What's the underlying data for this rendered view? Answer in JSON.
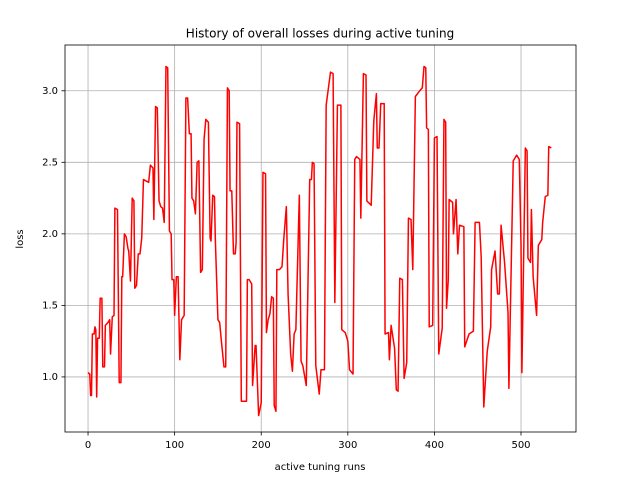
{
  "chart_data": {
    "type": "line",
    "title": "History of overall losses during active tuning",
    "x_label": "active tuning runs",
    "y_label": "loss",
    "color": "#ff0000",
    "grid": true,
    "x": [
      0,
      2,
      3,
      4,
      5,
      7,
      8,
      9,
      10,
      11,
      13,
      14,
      16,
      17,
      19,
      20,
      23,
      25,
      26,
      28,
      30,
      31,
      34,
      36,
      38,
      39,
      40,
      42,
      44,
      46,
      47,
      49,
      51,
      53,
      54,
      56,
      58,
      60,
      62,
      64,
      67,
      70,
      72,
      75,
      76,
      78,
      80,
      82,
      84,
      86,
      88,
      90,
      92,
      94,
      96,
      97,
      99,
      100,
      102,
      104,
      106,
      108,
      111,
      113,
      115,
      117,
      119,
      120,
      122,
      124,
      126,
      128,
      130,
      132,
      134,
      136,
      139,
      141,
      142,
      144,
      146,
      147,
      150,
      152,
      154,
      157,
      159,
      161,
      163,
      164,
      166,
      168,
      170,
      171,
      172,
      175,
      177,
      179,
      183,
      184,
      186,
      189,
      190,
      193,
      194,
      197,
      200,
      202,
      205,
      206,
      208,
      210,
      212,
      214,
      215,
      217,
      218,
      221,
      224,
      226,
      229,
      231,
      234,
      236,
      238,
      240,
      244,
      246,
      248,
      252,
      256,
      258,
      259,
      261,
      263,
      267,
      269,
      273,
      275,
      280,
      283,
      285,
      288,
      292,
      293,
      297,
      300,
      302,
      306,
      308,
      310,
      314,
      315,
      318,
      321,
      322,
      327,
      330,
      333,
      334,
      336,
      338,
      342,
      343,
      347,
      348,
      350,
      354,
      356,
      358,
      360,
      363,
      365,
      368,
      370,
      373,
      375,
      378,
      383,
      386,
      388,
      390,
      391,
      393,
      394,
      398,
      400,
      403,
      405,
      409,
      411,
      413,
      414,
      416,
      417,
      421,
      422,
      425,
      427,
      429,
      434,
      435,
      440,
      445,
      447,
      452,
      454,
      457,
      461,
      465,
      466,
      470,
      473,
      475,
      477,
      481,
      485,
      486,
      491,
      495,
      498,
      500,
      501,
      505,
      507,
      508,
      511,
      512,
      514,
      518,
      520,
      524,
      525,
      528,
      531,
      532,
      535
    ],
    "values": [
      1.03,
      1.02,
      0.87,
      0.87,
      1.3,
      1.3,
      1.35,
      1.33,
      0.86,
      1.27,
      1.27,
      1.55,
      1.55,
      1.07,
      1.07,
      1.36,
      1.38,
      1.4,
      1.16,
      1.42,
      1.43,
      2.18,
      2.17,
      0.96,
      0.96,
      1.7,
      1.7,
      2.0,
      1.98,
      1.9,
      1.88,
      1.67,
      2.25,
      2.23,
      1.62,
      1.64,
      1.86,
      1.86,
      1.97,
      2.38,
      2.37,
      2.36,
      2.48,
      2.46,
      2.1,
      2.89,
      2.88,
      2.23,
      2.19,
      2.18,
      2.08,
      3.17,
      3.16,
      2.02,
      2.0,
      1.68,
      1.68,
      1.43,
      1.7,
      1.7,
      1.12,
      1.4,
      1.43,
      2.95,
      2.95,
      2.7,
      2.7,
      2.25,
      2.23,
      2.14,
      2.5,
      2.51,
      1.73,
      1.75,
      2.66,
      2.8,
      2.78,
      1.97,
      1.95,
      2.27,
      2.26,
      1.96,
      1.4,
      1.38,
      1.25,
      1.07,
      1.07,
      3.02,
      3.0,
      2.3,
      2.3,
      1.86,
      1.86,
      1.94,
      2.78,
      2.77,
      0.83,
      0.83,
      0.83,
      1.68,
      1.68,
      1.65,
      0.94,
      1.22,
      1.22,
      0.73,
      0.82,
      2.43,
      2.42,
      1.31,
      1.4,
      1.44,
      1.56,
      1.55,
      0.8,
      0.76,
      1.75,
      1.75,
      1.77,
      1.96,
      2.19,
      1.58,
      1.16,
      1.04,
      1.3,
      1.33,
      2.27,
      1.11,
      1.08,
      0.94,
      2.38,
      2.38,
      2.5,
      2.49,
      1.08,
      0.88,
      1.05,
      1.05,
      2.9,
      3.13,
      3.12,
      1.52,
      2.9,
      2.9,
      1.33,
      1.31,
      1.25,
      1.05,
      1.02,
      2.52,
      2.54,
      2.52,
      2.11,
      3.12,
      3.11,
      2.23,
      2.2,
      2.79,
      2.98,
      2.6,
      2.6,
      2.91,
      2.91,
      1.3,
      1.31,
      1.12,
      1.36,
      1.2,
      0.91,
      0.9,
      1.69,
      1.68,
      0.99,
      1.1,
      2.11,
      2.1,
      1.75,
      2.96,
      3.0,
      3.02,
      3.17,
      3.16,
      2.74,
      2.73,
      1.35,
      1.36,
      2.67,
      2.68,
      1.16,
      1.34,
      2.8,
      2.78,
      1.48,
      1.68,
      2.24,
      2.22,
      2.0,
      2.24,
      1.86,
      2.06,
      2.05,
      1.21,
      1.3,
      1.32,
      2.08,
      2.08,
      1.84,
      0.79,
      1.18,
      1.35,
      1.75,
      1.88,
      1.58,
      1.58,
      2.06,
      1.8,
      1.45,
      0.92,
      2.51,
      2.55,
      2.52,
      1.93,
      1.03,
      2.6,
      2.58,
      1.83,
      1.8,
      2.17,
      1.7,
      1.43,
      1.92,
      1.96,
      2.08,
      2.26,
      2.27,
      2.61,
      2.6
    ],
    "xlim": [
      -26.6,
      563.5
    ],
    "ylim": [
      0.615,
      3.32
    ],
    "xticks": [
      0,
      100,
      200,
      300,
      400,
      500
    ],
    "yticks": [
      {
        "value": 1,
        "label": "1.0"
      },
      {
        "value": 1.5,
        "label": "1.5"
      },
      {
        "value": 2,
        "label": "2.0"
      },
      {
        "value": 2.5,
        "label": "2.5"
      },
      {
        "value": 3,
        "label": "3.0"
      }
    ]
  }
}
